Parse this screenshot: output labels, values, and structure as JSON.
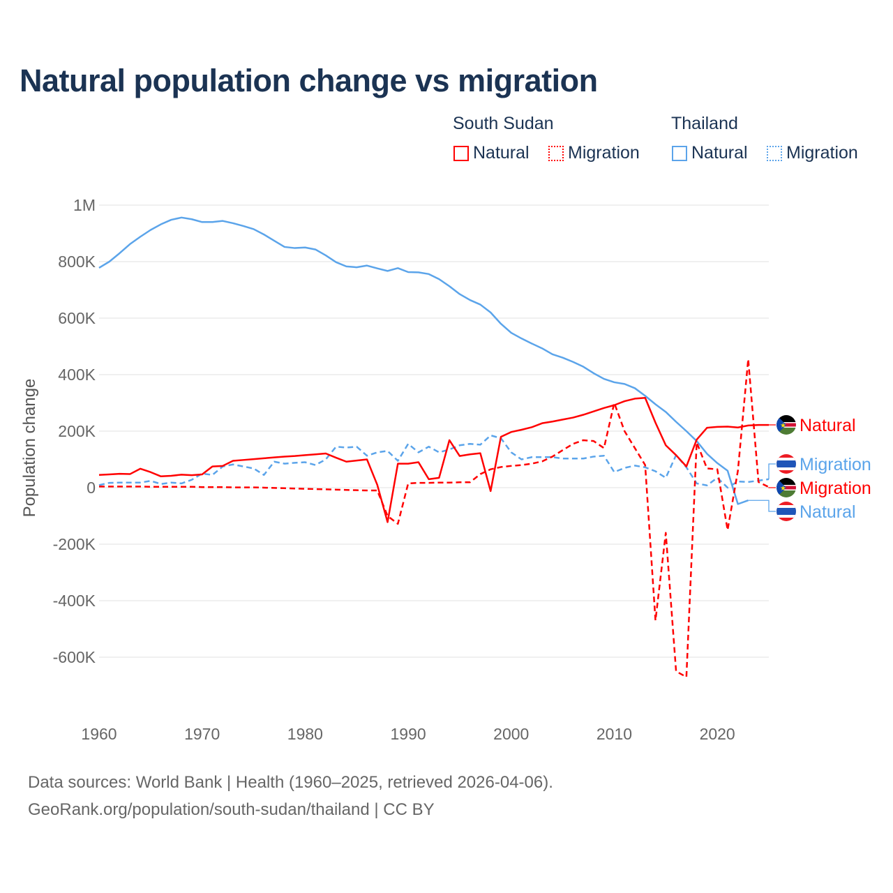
{
  "chart_data": {
    "type": "line",
    "title": "Natural population change vs migration",
    "ylabel": "Population change",
    "xlabel": "",
    "xlim": [
      1960,
      2025
    ],
    "ylim": [
      -700000,
      1000000
    ],
    "units": "thousands",
    "xticks": [
      "1960",
      "1970",
      "1980",
      "1990",
      "2000",
      "2010",
      "2020"
    ],
    "yticks": [
      {
        "v": 1000,
        "label": "1M"
      },
      {
        "v": 800,
        "label": "800K"
      },
      {
        "v": 600,
        "label": "600K"
      },
      {
        "v": 400,
        "label": "400K"
      },
      {
        "v": 200,
        "label": "200K"
      },
      {
        "v": 0,
        "label": "0"
      },
      {
        "v": -200,
        "label": "-200K"
      },
      {
        "v": -400,
        "label": "-400K"
      },
      {
        "v": -600,
        "label": "-600K"
      }
    ],
    "grid": true,
    "legend_groups": [
      "South Sudan",
      "Thailand"
    ],
    "series": [
      {
        "name": "Thailand Natural",
        "country": "Thailand",
        "kind": "Natural",
        "color": "#5ba4ea",
        "dash": false,
        "start": 1960,
        "values": [
          778,
          800,
          830,
          862,
          888,
          912,
          932,
          948,
          956,
          950,
          940,
          940,
          944,
          936,
          926,
          915,
          896,
          874,
          852,
          848,
          850,
          843,
          822,
          798,
          783,
          780,
          786,
          776,
          767,
          777,
          763,
          762,
          756,
          738,
          713,
          685,
          664,
          648,
          620,
          580,
          548,
          528,
          510,
          493,
          472,
          460,
          445,
          428,
          405,
          385,
          373,
          367,
          352,
          325,
          295,
          268,
          233,
          200,
          165,
          120,
          87,
          60,
          -58,
          -45
        ]
      },
      {
        "name": "Thailand Migration",
        "country": "Thailand",
        "kind": "Migration",
        "color": "#5ba4ea",
        "dash": true,
        "start": 1960,
        "values": [
          9,
          17,
          18,
          18,
          18,
          24,
          13,
          18,
          15,
          28,
          50,
          45,
          75,
          82,
          75,
          68,
          45,
          92,
          85,
          88,
          90,
          80,
          100,
          145,
          142,
          145,
          113,
          125,
          130,
          95,
          155,
          125,
          145,
          125,
          135,
          150,
          155,
          152,
          185,
          175,
          125,
          100,
          108,
          108,
          108,
          103,
          103,
          103,
          110,
          113,
          55,
          70,
          78,
          72,
          58,
          35,
          115,
          72,
          15,
          8,
          35,
          0,
          22,
          20,
          25,
          30
        ]
      },
      {
        "name": "South Sudan Natural",
        "country": "South Sudan",
        "kind": "Natural",
        "color": "#ff0000",
        "dash": false,
        "start": 1960,
        "values": [
          45,
          47,
          49,
          48,
          67,
          55,
          40,
          42,
          46,
          44,
          47,
          75,
          77,
          95,
          98,
          101,
          104,
          107,
          110,
          112,
          115,
          118,
          121,
          106,
          92,
          96,
          100,
          10,
          -122,
          85,
          85,
          90,
          30,
          35,
          168,
          112,
          118,
          122,
          -12,
          180,
          197,
          205,
          214,
          228,
          234,
          241,
          248,
          258,
          270,
          282,
          292,
          306,
          315,
          318,
          230,
          150,
          115,
          75,
          170,
          212,
          215,
          216,
          213,
          220,
          222,
          222
        ]
      },
      {
        "name": "South Sudan Migration",
        "country": "South Sudan",
        "kind": "Migration",
        "color": "#ff0000",
        "dash": true,
        "start": 1960,
        "values": [
          4,
          4,
          4,
          4,
          4,
          3,
          3,
          3,
          3,
          3,
          2,
          2,
          2,
          1,
          1,
          1,
          0,
          -1,
          -2,
          -3,
          -4,
          -5,
          -6,
          -7,
          -8,
          -9,
          -10,
          -10,
          -100,
          -128,
          15,
          17,
          17,
          18,
          18,
          19,
          19,
          48,
          65,
          73,
          77,
          80,
          85,
          93,
          110,
          133,
          155,
          168,
          165,
          140,
          300,
          200,
          140,
          80,
          -470,
          -160,
          -650,
          -670,
          160,
          68,
          65,
          -150,
          60,
          455,
          20,
          2
        ]
      }
    ]
  },
  "legend": {
    "south_sudan": "South Sudan",
    "thailand": "Thailand",
    "natural": "Natural",
    "migration": "Migration"
  },
  "end_labels": {
    "ss_natural": "Natural",
    "th_migration": "Migration",
    "ss_migration": "Migration",
    "th_natural": "Natural"
  },
  "footer": {
    "line1": "Data sources: World Bank | Health (1960–2025, retrieved 2026-04-06).",
    "line2": "GeoRank.org/population/south-sudan/thailand | CC BY"
  }
}
